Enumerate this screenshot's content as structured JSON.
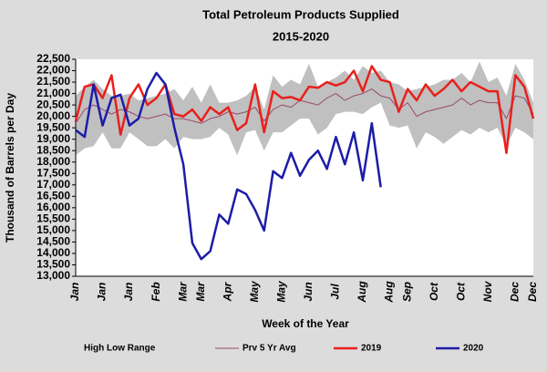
{
  "chart_data": {
    "type": "line",
    "title": "Total Petroleum Products Supplied",
    "subtitle": "2015-2020",
    "y_label": "Thousand of Barrels per Day",
    "x_label": "Week of the Year",
    "categories": [
      "Jan",
      null,
      null,
      "Jan",
      null,
      null,
      "Jan",
      null,
      null,
      "Feb",
      null,
      null,
      "Mar",
      null,
      "Mar",
      null,
      null,
      "Apr",
      null,
      null,
      "May",
      null,
      null,
      "May",
      null,
      null,
      "Jun",
      null,
      null,
      "Jul",
      null,
      null,
      "Aug",
      null,
      null,
      "Aug",
      null,
      "Sep",
      null,
      null,
      "Oct",
      null,
      null,
      "Oct",
      null,
      null,
      "Nov",
      null,
      null,
      "Dec",
      null,
      "Dec"
    ],
    "ylim": [
      13000,
      22500
    ],
    "yticks": [
      {
        "value": 13000,
        "label": "13,000"
      },
      {
        "value": 13500,
        "label": "13,500"
      },
      {
        "value": 14000,
        "label": "14,000"
      },
      {
        "value": 14500,
        "label": "14,500"
      },
      {
        "value": 15000,
        "label": "15,000"
      },
      {
        "value": 15500,
        "label": "15,500"
      },
      {
        "value": 16000,
        "label": "16,000"
      },
      {
        "value": 16500,
        "label": "16,500"
      },
      {
        "value": 17000,
        "label": "17,000"
      },
      {
        "value": 17500,
        "label": "17,500"
      },
      {
        "value": 18000,
        "label": "18,000"
      },
      {
        "value": 18500,
        "label": "18,500"
      },
      {
        "value": 19000,
        "label": "19,000"
      },
      {
        "value": 19500,
        "label": "19,500"
      },
      {
        "value": 20000,
        "label": "20,000"
      },
      {
        "value": 20500,
        "label": "20,500"
      },
      {
        "value": 21000,
        "label": "21,000"
      },
      {
        "value": 21500,
        "label": "21,500"
      },
      {
        "value": 22000,
        "label": "22,000"
      },
      {
        "value": 22500,
        "label": "22,500"
      }
    ],
    "range": {
      "name": "High Low Range",
      "color": "#c0c0c0",
      "high": [
        20900,
        21300,
        21600,
        21200,
        20900,
        20900,
        21000,
        20700,
        20800,
        20900,
        21000,
        21200,
        20700,
        21300,
        20600,
        21400,
        20600,
        20600,
        20700,
        20900,
        21300,
        20300,
        21800,
        21300,
        21600,
        21400,
        22300,
        21300,
        21500,
        21700,
        22000,
        21600,
        22200,
        21900,
        22000,
        21500,
        21400,
        21100,
        21200,
        21300,
        21400,
        21600,
        21600,
        21900,
        21500,
        22400,
        21500,
        21700,
        20900,
        22300,
        21600,
        20600
      ],
      "low": [
        18300,
        18600,
        18700,
        19300,
        18600,
        18600,
        19300,
        19000,
        18700,
        18700,
        19000,
        18600,
        19100,
        19000,
        19000,
        19100,
        19500,
        19200,
        18300,
        19300,
        19400,
        18500,
        19300,
        19300,
        19600,
        19900,
        19900,
        19200,
        19500,
        20100,
        20200,
        20200,
        20100,
        20400,
        20600,
        19600,
        19500,
        19600,
        18600,
        19300,
        19100,
        18800,
        19100,
        19400,
        19200,
        19500,
        19300,
        19500,
        18700,
        19500,
        19300,
        19000
      ]
    },
    "series": [
      {
        "name": "Prv 5 Yr Avg",
        "color": "#9a4a6e",
        "width": 1,
        "values": [
          19700,
          20300,
          20500,
          20300,
          20100,
          20300,
          20200,
          20000,
          19900,
          20000,
          20100,
          19900,
          19900,
          19800,
          19700,
          19900,
          20000,
          20200,
          20100,
          20200,
          20400,
          19800,
          20300,
          20500,
          20400,
          20700,
          20600,
          20500,
          20800,
          21000,
          20700,
          20900,
          21000,
          21200,
          20900,
          20800,
          20300,
          20600,
          20000,
          20200,
          20300,
          20400,
          20500,
          20800,
          20500,
          20700,
          20600,
          20600,
          19900,
          20900,
          20800,
          20100
        ]
      },
      {
        "name": "2019",
        "color": "#e8201c",
        "width": 2.5,
        "values": [
          19800,
          21300,
          21400,
          20800,
          21800,
          19200,
          20800,
          21400,
          20500,
          20800,
          21400,
          20100,
          20000,
          20300,
          19800,
          20400,
          20100,
          20400,
          19400,
          19700,
          21400,
          19300,
          21100,
          20800,
          20850,
          20700,
          21300,
          21250,
          21500,
          21350,
          21500,
          22000,
          21100,
          22200,
          21600,
          21500,
          20200,
          21200,
          20700,
          21400,
          20900,
          21200,
          21600,
          21100,
          21500,
          21300,
          21100,
          21100,
          18400,
          21800,
          21300,
          19900
        ]
      },
      {
        "name": "2020",
        "color": "#1c1ca8",
        "width": 2.5,
        "values": [
          19400,
          19100,
          21400,
          19600,
          20800,
          20950,
          19600,
          19900,
          21200,
          21900,
          21400,
          19500,
          17900,
          14450,
          13750,
          14100,
          15700,
          15300,
          16800,
          16600,
          15900,
          15000,
          17600,
          17300,
          18400,
          17400,
          18100,
          18500,
          17700,
          19100,
          17900,
          19300,
          17200,
          19700,
          16900,
          null,
          null,
          null,
          null,
          null,
          null,
          null,
          null,
          null,
          null,
          null,
          null,
          null,
          null,
          null,
          null,
          null
        ]
      }
    ]
  }
}
